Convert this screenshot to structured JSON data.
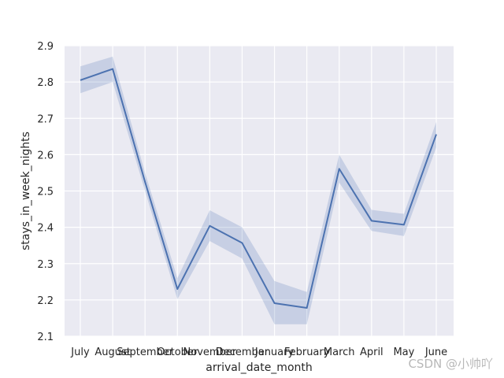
{
  "chart_data": {
    "type": "line",
    "xlabel": "arrival_date_month",
    "ylabel": "stays_in_week_nights",
    "categories": [
      "July",
      "August",
      "September",
      "October",
      "November",
      "December",
      "January",
      "February",
      "March",
      "April",
      "May",
      "June"
    ],
    "series": [
      {
        "values": [
          2.805,
          2.836,
          2.525,
          2.23,
          2.404,
          2.357,
          2.191,
          2.178,
          2.561,
          2.418,
          2.407,
          2.656
        ],
        "ci_lower": [
          2.769,
          2.8,
          2.5,
          2.202,
          2.362,
          2.314,
          2.133,
          2.133,
          2.523,
          2.39,
          2.376,
          2.62
        ],
        "ci_upper": [
          2.843,
          2.87,
          2.55,
          2.26,
          2.447,
          2.4,
          2.252,
          2.222,
          2.6,
          2.448,
          2.437,
          2.69
        ],
        "color": "#4c72b0"
      }
    ],
    "ylim": [
      2.1,
      2.9
    ],
    "yticks": [
      "2.1",
      "2.2",
      "2.3",
      "2.4",
      "2.5",
      "2.6",
      "2.7",
      "2.8",
      "2.9"
    ],
    "grid": true,
    "background": "#eaeaf2"
  },
  "watermark": "CSDN @小帅吖"
}
